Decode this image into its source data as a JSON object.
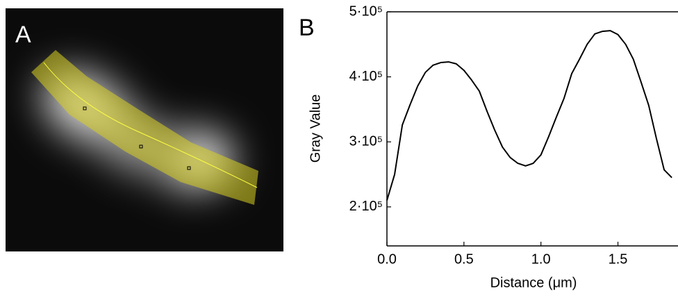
{
  "image_panel": {
    "label": "A"
  },
  "chart_data": {
    "type": "line",
    "panel_label": "B",
    "x_label": "Distance (μm)",
    "y_label": "Gray Value",
    "x": [
      0,
      0.05,
      0.1,
      0.15,
      0.2,
      0.25,
      0.3,
      0.35,
      0.4,
      0.45,
      0.5,
      0.55,
      0.6,
      0.65,
      0.7,
      0.75,
      0.8,
      0.85,
      0.9,
      0.95,
      1.0,
      1.05,
      1.1,
      1.15,
      1.2,
      1.25,
      1.3,
      1.35,
      1.4,
      1.45,
      1.5,
      1.55,
      1.6,
      1.65,
      1.7,
      1.75,
      1.8,
      1.85
    ],
    "series": [
      {
        "name": "Gray Value",
        "color": "#000000",
        "values": [
          210000,
          250000,
          326000,
          357000,
          386000,
          407000,
          418000,
          422000,
          423000,
          420000,
          410000,
          395000,
          378000,
          347000,
          318000,
          292000,
          276000,
          267000,
          263000,
          267000,
          280000,
          308000,
          338000,
          367000,
          405000,
          427000,
          450000,
          466000,
          470000,
          471000,
          465000,
          450000,
          427000,
          392000,
          356000,
          305000,
          257000,
          245000
        ]
      }
    ],
    "xlim": [
      0,
      1.89
    ],
    "ylim": [
      140000,
      500000
    ],
    "xticks": [
      {
        "value": 0,
        "label": "0.0"
      },
      0.5,
      {
        "value": 1,
        "label": "1.0"
      },
      1.5
    ],
    "yticks": [
      {
        "value": 200000,
        "label": "2·10⁵"
      },
      {
        "value": 300000,
        "label": "3·10⁵"
      },
      {
        "value": 400000,
        "label": "4·10⁵"
      },
      {
        "value": 500000,
        "label": "5·10⁵"
      }
    ],
    "grid": false
  }
}
